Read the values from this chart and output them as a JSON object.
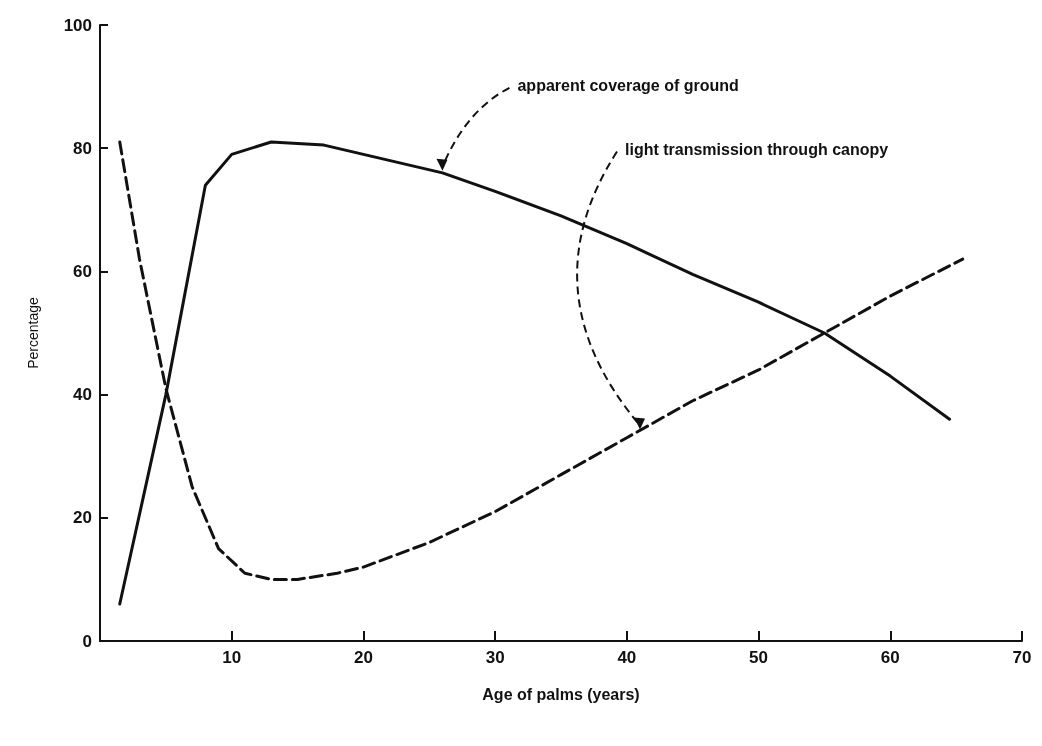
{
  "chart_data": {
    "type": "line",
    "xlabel": "Age of palms (years)",
    "ylabel": "Percentage",
    "xlim": [
      0,
      70
    ],
    "xticks": [
      10,
      20,
      30,
      40,
      50,
      60,
      70
    ],
    "ylim": [
      0,
      100
    ],
    "yticks": [
      0,
      20,
      40,
      60,
      80,
      100
    ],
    "marker": "none",
    "series": [
      {
        "color": "#111111",
        "line_style": "solid",
        "x": [
          1.5,
          5,
          8,
          10,
          13,
          17,
          20,
          26,
          30,
          35,
          40,
          45,
          50,
          55,
          60,
          64.5
        ],
        "values": [
          6,
          40,
          74,
          79,
          81,
          80.5,
          79,
          76,
          73,
          69,
          64.5,
          59.5,
          55,
          50,
          43,
          36
        ]
      },
      {
        "color": "#111111",
        "line_style": "dashed",
        "x": [
          1.5,
          3,
          5,
          7,
          9,
          11,
          13,
          15,
          18,
          20,
          25,
          30,
          35,
          40,
          45,
          50,
          55,
          60,
          65.5
        ],
        "values": [
          81,
          62,
          41,
          25,
          15,
          11,
          10,
          10,
          11,
          12,
          16,
          21,
          27,
          33,
          39,
          44,
          50,
          56,
          62
        ]
      }
    ],
    "annotations": [
      {
        "text": "apparent coverage of ground",
        "x": 26,
        "y": 76
      },
      {
        "text": "light transmission through canopy",
        "x": 41,
        "y": 34
      }
    ]
  }
}
